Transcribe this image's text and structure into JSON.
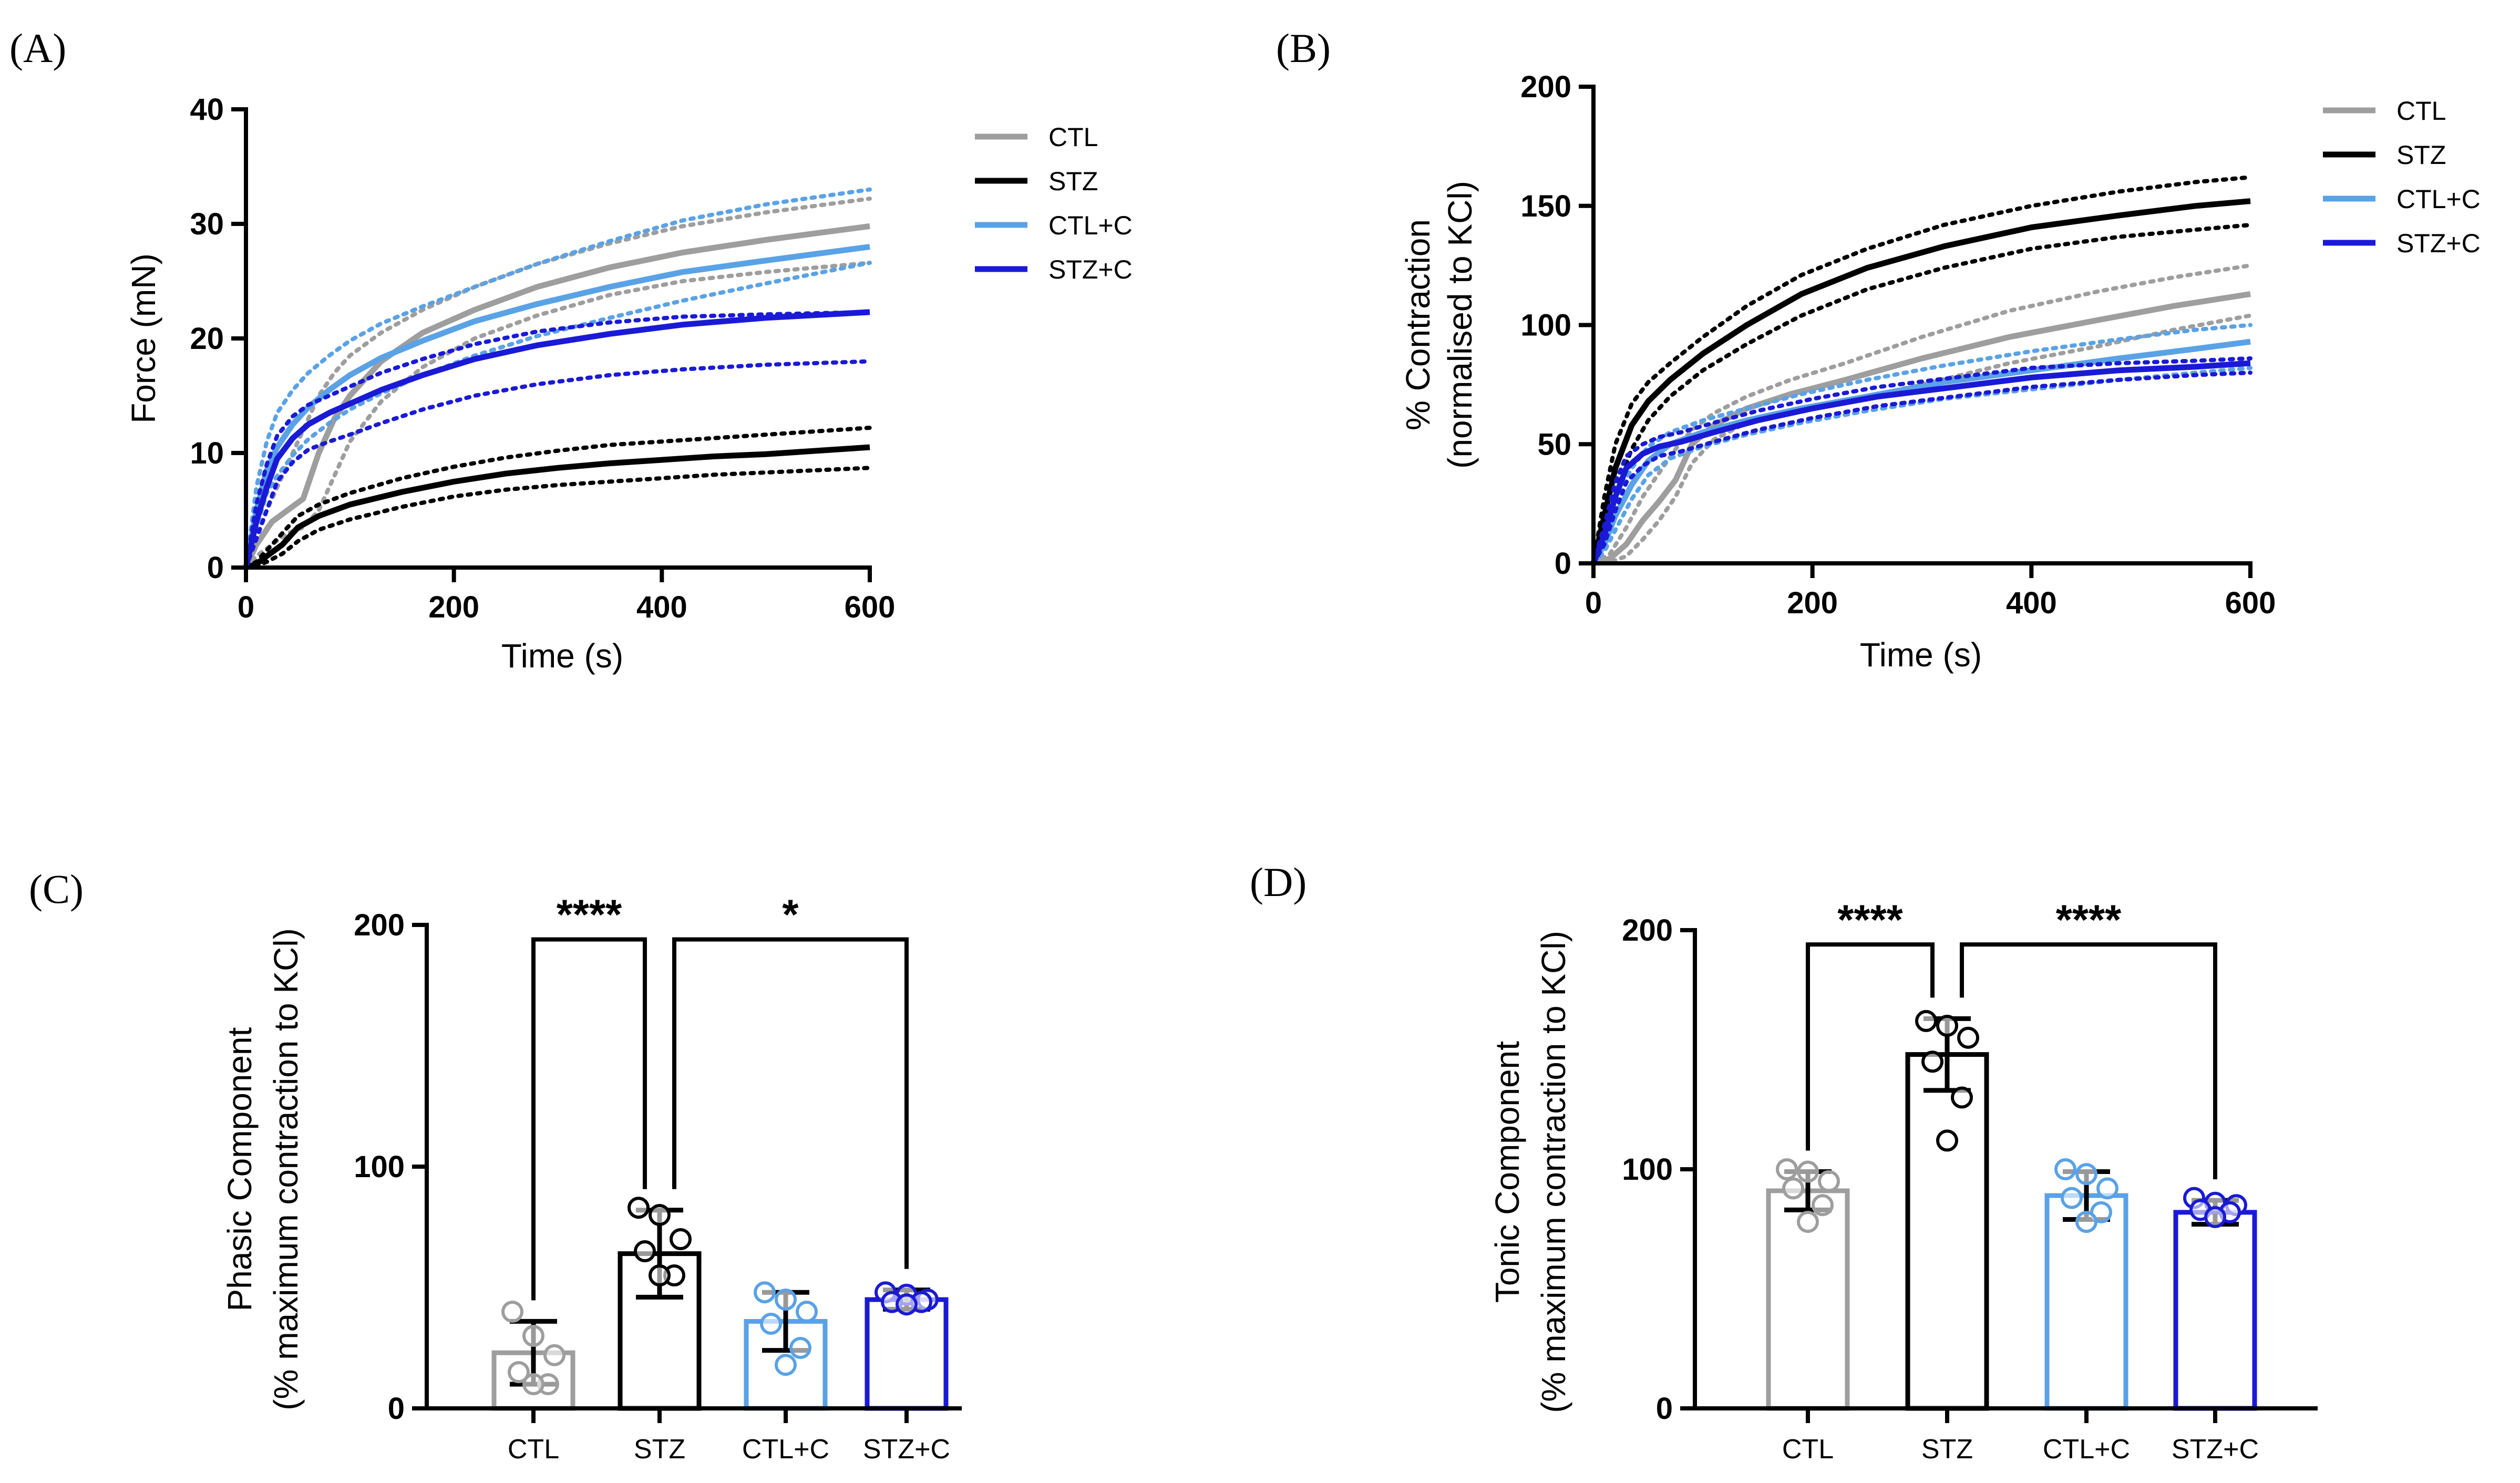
{
  "colors": {
    "CTL": "#9e9e9e",
    "STZ": "#000000",
    "CTL+C": "#5aa2e6",
    "STZ+C": "#1a1ad6"
  },
  "chart_data": [
    {
      "panel": "(A)",
      "type": "line",
      "title": "",
      "xlabel": "Time (s)",
      "ylabel": "Force (mN)",
      "xlim": [
        0,
        600
      ],
      "ylim": [
        0,
        40
      ],
      "xticks": [
        0,
        200,
        400,
        600
      ],
      "yticks": [
        0,
        10,
        20,
        30,
        40
      ],
      "legend": [
        "CTL",
        "STZ",
        "CTL+C",
        "STZ+C"
      ],
      "legend_position": "top-right",
      "series": [
        {
          "name": "CTL",
          "x": [
            0,
            10,
            25,
            40,
            55,
            70,
            85,
            100,
            130,
            170,
            220,
            280,
            350,
            420,
            500,
            600
          ],
          "mean": [
            0,
            2,
            4,
            5,
            6,
            10,
            13,
            15,
            18,
            20.5,
            22.5,
            24.5,
            26.2,
            27.5,
            28.6,
            29.8
          ],
          "upper": [
            0,
            3,
            6,
            9,
            12,
            15,
            17,
            18.5,
            20.5,
            22.5,
            24.5,
            26.5,
            28.3,
            29.8,
            31,
            32.2
          ],
          "lower": [
            0,
            1,
            2,
            3,
            3.5,
            5,
            8,
            11,
            14.5,
            17.5,
            20,
            22,
            23.8,
            25,
            25.8,
            26.6
          ]
        },
        {
          "name": "STZ",
          "x": [
            0,
            10,
            20,
            35,
            50,
            70,
            100,
            150,
            200,
            250,
            300,
            350,
            400,
            450,
            500,
            550,
            600
          ],
          "mean": [
            0,
            0.3,
            1,
            2,
            3.5,
            4.5,
            5.5,
            6.6,
            7.5,
            8.2,
            8.7,
            9.1,
            9.4,
            9.7,
            9.9,
            10.2,
            10.5
          ],
          "upper": [
            0,
            0.5,
            1.5,
            3,
            4.5,
            5.5,
            6.5,
            7.8,
            8.8,
            9.6,
            10.2,
            10.7,
            11,
            11.3,
            11.6,
            11.9,
            12.2
          ],
          "lower": [
            0,
            0.1,
            0.5,
            1.2,
            2.3,
            3.3,
            4.2,
            5.3,
            6.2,
            6.8,
            7.2,
            7.5,
            7.8,
            8.1,
            8.3,
            8.5,
            8.7
          ]
        },
        {
          "name": "CTL+C",
          "x": [
            0,
            10,
            20,
            30,
            45,
            60,
            80,
            100,
            130,
            170,
            220,
            280,
            350,
            420,
            500,
            600
          ],
          "mean": [
            0,
            5,
            8.5,
            10.5,
            12.5,
            14,
            15.5,
            16.8,
            18.3,
            19.8,
            21.5,
            23,
            24.5,
            25.8,
            26.8,
            28
          ],
          "upper": [
            0,
            7,
            11,
            13.5,
            15.5,
            17,
            18.5,
            19.8,
            21.3,
            22.8,
            24.5,
            26.5,
            28.5,
            30.3,
            31.7,
            33
          ],
          "lower": [
            0,
            3.5,
            6.5,
            8,
            9.8,
            11.2,
            12.6,
            13.8,
            15.2,
            16.8,
            18.5,
            20.2,
            21.8,
            23.3,
            24.8,
            26.6
          ]
        },
        {
          "name": "STZ+C",
          "x": [
            0,
            10,
            20,
            30,
            45,
            60,
            80,
            100,
            130,
            170,
            220,
            280,
            350,
            420,
            500,
            600
          ],
          "mean": [
            0,
            4,
            7,
            9.5,
            11.3,
            12.5,
            13.5,
            14.3,
            15.5,
            16.8,
            18.2,
            19.4,
            20.4,
            21.2,
            21.8,
            22.3
          ],
          "upper": [
            0,
            5.5,
            9,
            11.5,
            13.2,
            14.2,
            15,
            15.8,
            17,
            18.2,
            19.5,
            20.6,
            21.4,
            21.9,
            22.1,
            22.3
          ],
          "lower": [
            0,
            2.5,
            5,
            7.5,
            9.2,
            10.3,
            11,
            11.6,
            12.6,
            13.8,
            15,
            16,
            16.8,
            17.3,
            17.7,
            18
          ]
        }
      ]
    },
    {
      "panel": "(B)",
      "type": "line",
      "title": "",
      "xlabel": "Time (s)",
      "ylabel_line1": "% Contraction",
      "ylabel_line2": "(normalised to KCl)",
      "xlim": [
        0,
        600
      ],
      "ylim": [
        0,
        200
      ],
      "xticks": [
        0,
        200,
        400,
        600
      ],
      "yticks": [
        0,
        50,
        100,
        150,
        200
      ],
      "legend": [
        "CTL",
        "STZ",
        "CTL+C",
        "STZ+C"
      ],
      "legend_position": "top-right",
      "series": [
        {
          "name": "CTL",
          "x": [
            0,
            15,
            30,
            45,
            60,
            75,
            90,
            110,
            140,
            180,
            230,
            300,
            380,
            460,
            530,
            600
          ],
          "mean": [
            0,
            2,
            8,
            18,
            26,
            35,
            50,
            58,
            65,
            71,
            77,
            86,
            95,
            102,
            108,
            113
          ],
          "upper": [
            0,
            4,
            15,
            28,
            38,
            48,
            56,
            63,
            70,
            77,
            84,
            95,
            106,
            114,
            120,
            125
          ],
          "lower": [
            0,
            0.5,
            3,
            10,
            18,
            28,
            42,
            52,
            59,
            64,
            68,
            75,
            84,
            91,
            98,
            104
          ]
        },
        {
          "name": "STZ",
          "x": [
            0,
            10,
            20,
            35,
            50,
            70,
            100,
            140,
            190,
            250,
            320,
            400,
            480,
            550,
            600
          ],
          "mean": [
            0,
            20,
            40,
            58,
            68,
            77,
            88,
            100,
            113,
            124,
            133,
            141,
            146,
            150,
            152
          ],
          "upper": [
            0,
            28,
            50,
            67,
            76,
            84,
            95,
            108,
            121,
            132,
            142,
            150,
            156,
            160,
            162
          ],
          "lower": [
            0,
            12,
            30,
            48,
            60,
            70,
            81,
            92,
            104,
            115,
            124,
            132,
            137,
            140,
            142
          ]
        },
        {
          "name": "CTL+C",
          "x": [
            0,
            10,
            20,
            35,
            50,
            70,
            100,
            140,
            190,
            250,
            320,
            400,
            480,
            550,
            600
          ],
          "mean": [
            0,
            8,
            20,
            33,
            43,
            50,
            55,
            60,
            65,
            70,
            76,
            81,
            86,
            90,
            93
          ],
          "upper": [
            0,
            12,
            26,
            40,
            49,
            55,
            60,
            65,
            71,
            77,
            83,
            89,
            94,
            98,
            100
          ],
          "lower": [
            0,
            5,
            14,
            27,
            37,
            44,
            49,
            54,
            59,
            64,
            69,
            73,
            77,
            80,
            82
          ]
        },
        {
          "name": "STZ+C",
          "x": [
            0,
            10,
            20,
            30,
            45,
            60,
            80,
            110,
            150,
            200,
            260,
            330,
            400,
            480,
            550,
            600
          ],
          "mean": [
            0,
            12,
            28,
            40,
            46,
            49,
            51,
            55,
            60,
            65,
            70,
            74,
            78,
            81,
            82.5,
            84
          ],
          "upper": [
            0,
            16,
            34,
            45,
            50,
            53,
            55,
            59,
            64,
            69,
            74,
            78,
            82,
            84,
            85,
            86
          ],
          "lower": [
            0,
            8,
            22,
            34,
            41,
            45,
            47,
            51,
            56,
            61,
            66,
            70,
            74,
            77,
            79,
            80
          ]
        }
      ]
    },
    {
      "panel": "(C)",
      "type": "bar",
      "ylabel_line1": "Phasic Component",
      "ylabel_line2": "(% maximum contraction to KCl)",
      "ylim": [
        0,
        200
      ],
      "yticks": [
        0,
        100,
        200
      ],
      "categories": [
        "CTL",
        "STZ",
        "CTL+C",
        "STZ+C"
      ],
      "values": [
        23,
        64,
        36,
        45
      ],
      "sd": [
        13,
        18,
        12,
        4
      ],
      "points": [
        [
          40,
          30,
          22,
          15,
          10,
          10
        ],
        [
          83,
          80,
          70,
          65,
          55,
          55
        ],
        [
          48,
          45,
          40,
          35,
          25,
          18
        ],
        [
          48,
          47,
          45,
          44,
          44,
          43
        ]
      ],
      "significance": [
        {
          "from": "CTL",
          "to": "STZ",
          "label": "****"
        },
        {
          "from": "STZ",
          "to": "STZ+C",
          "label": "*"
        }
      ]
    },
    {
      "panel": "(D)",
      "type": "bar",
      "ylabel_line1": "Tonic Component",
      "ylabel_line2": "(% maximum contraction to KCl)",
      "ylim": [
        0,
        200
      ],
      "yticks": [
        0,
        100,
        200
      ],
      "categories": [
        "CTL",
        "STZ",
        "CTL+C",
        "STZ+C"
      ],
      "values": [
        91,
        148,
        89,
        82
      ],
      "sd": [
        8,
        15,
        10,
        5
      ],
      "points": [
        [
          100,
          99,
          95,
          92,
          85,
          78
        ],
        [
          162,
          160,
          155,
          145,
          130,
          112
        ],
        [
          100,
          98,
          92,
          88,
          82,
          78
        ],
        [
          88,
          86,
          85,
          83,
          82,
          80
        ]
      ],
      "significance": [
        {
          "from": "CTL",
          "to": "STZ",
          "label": "****"
        },
        {
          "from": "STZ",
          "to": "STZ+C",
          "label": "****"
        }
      ]
    }
  ]
}
